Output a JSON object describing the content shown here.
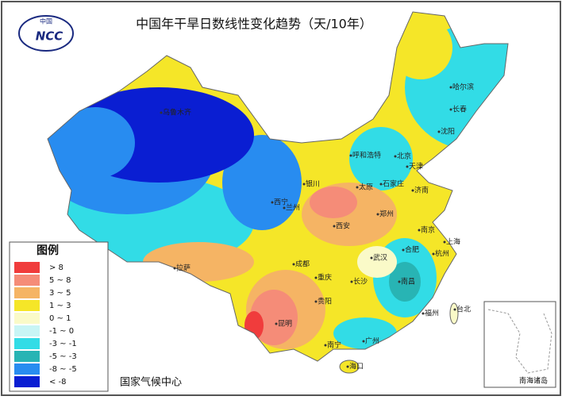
{
  "header": {
    "title": "中国年干旱日数线性变化趋势（天/10年）",
    "logo_top": "中国",
    "logo_main": "NCC"
  },
  "legend": {
    "title": "图例",
    "items": [
      {
        "label": "> 8",
        "color": "#f03c3c"
      },
      {
        "label": "5 ~ 8",
        "color": "#f58c78"
      },
      {
        "label": "3 ~ 5",
        "color": "#f5b464"
      },
      {
        "label": "1 ~ 3",
        "color": "#f5e628"
      },
      {
        "label": "0 ~ 1",
        "color": "#fafac8"
      },
      {
        "label": "-1 ~ 0",
        "color": "#c8f5f5"
      },
      {
        "label": "-3 ~ -1",
        "color": "#32dce6"
      },
      {
        "label": "-5 ~ -3",
        "color": "#28b4b4"
      },
      {
        "label": "-8 ~ -5",
        "color": "#288cf0"
      },
      {
        "label": "< -8",
        "color": "#0a1ed2"
      }
    ]
  },
  "cities": [
    "乌鲁木齐",
    "拉萨",
    "西宁",
    "兰州",
    "银川",
    "呼和浩特",
    "太原",
    "石家庄",
    "济南",
    "郑州",
    "西安",
    "成都",
    "重庆",
    "贵阳",
    "昆明",
    "南宁",
    "海口",
    "广州",
    "长沙",
    "南昌",
    "武汉",
    "合肥",
    "南京",
    "杭州",
    "上海",
    "福州",
    "台北",
    "哈尔滨",
    "长春",
    "沈阳",
    "北京",
    "天津"
  ],
  "inset": {
    "label": "南海诸岛"
  },
  "footer": {
    "source": "国家气候中心"
  }
}
